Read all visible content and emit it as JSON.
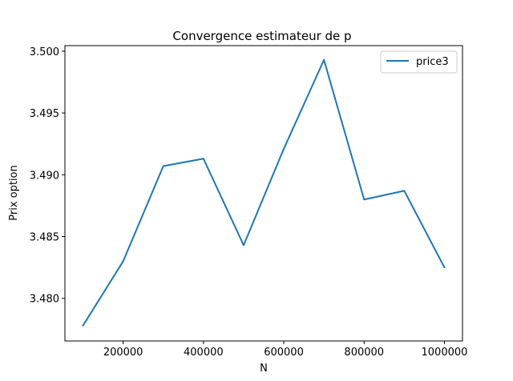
{
  "chart_data": {
    "type": "line",
    "title": "Convergence estimateur de p",
    "xlabel": "N",
    "ylabel": "Prix option",
    "x": [
      100000,
      200000,
      300000,
      400000,
      500000,
      600000,
      700000,
      800000,
      900000,
      1000000
    ],
    "series": [
      {
        "name": "price3",
        "color": "#1f77b4",
        "values": [
          3.4778,
          3.483,
          3.4907,
          3.4913,
          3.4843,
          3.4921,
          3.4993,
          3.488,
          3.4887,
          3.4825
        ]
      }
    ],
    "xlim": [
      55000,
      1045000
    ],
    "ylim": [
      3.47655,
      3.50045
    ],
    "xticks": [
      200000,
      400000,
      600000,
      800000,
      1000000
    ],
    "xtick_labels": [
      "200000",
      "400000",
      "600000",
      "800000",
      "1000000"
    ],
    "yticks": [
      3.48,
      3.485,
      3.49,
      3.495,
      3.5
    ],
    "ytick_labels": [
      "3.480",
      "3.485",
      "3.490",
      "3.495",
      "3.500"
    ],
    "grid": false,
    "legend_position": "top-right"
  }
}
